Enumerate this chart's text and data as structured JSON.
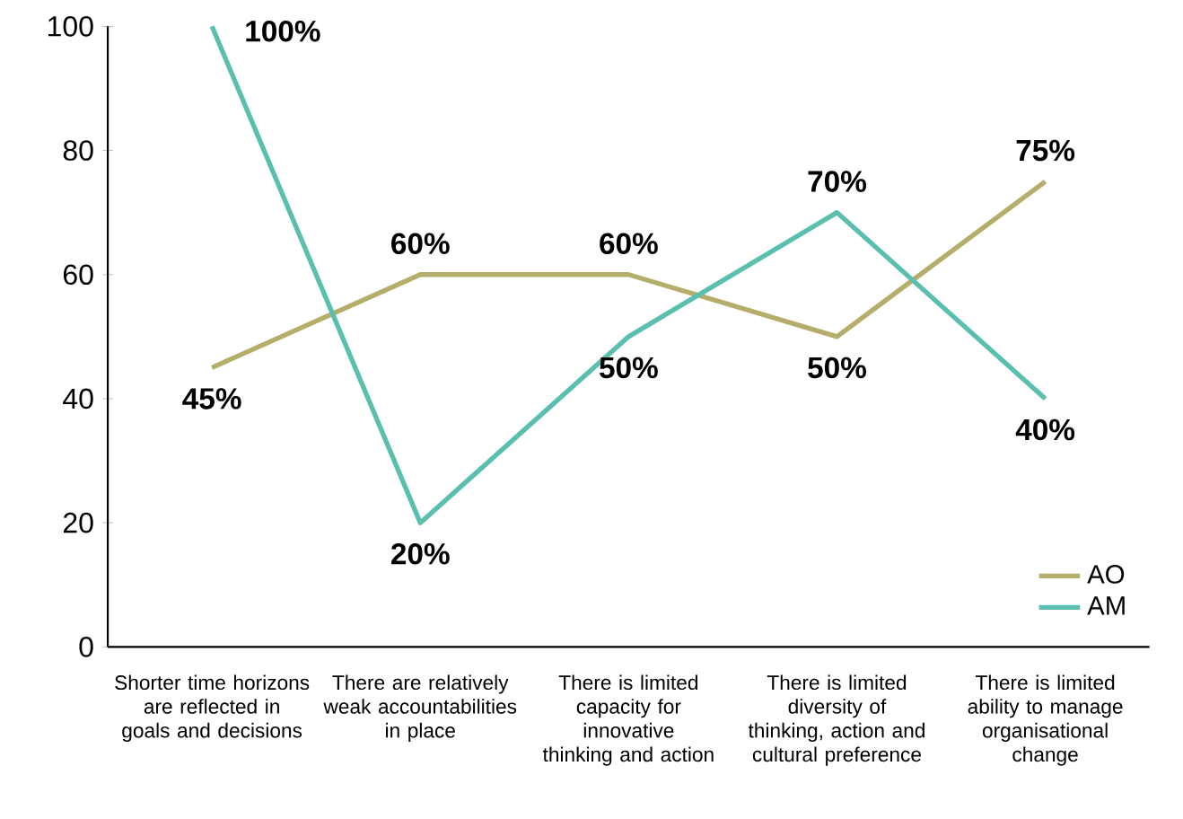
{
  "chart_data": {
    "type": "line",
    "categories": [
      "Shorter time horizons are reflected in goals and decisions",
      "There are relatively weak accountabilities in place",
      "There is limited capacity for innovative thinking and action",
      "There is limited diversity of thinking, action and cultural preference",
      "There is limited ability to manage organisational change"
    ],
    "series": [
      {
        "name": "AO",
        "color": "#b5ad6a",
        "values": [
          45,
          60,
          60,
          50,
          75
        ],
        "value_labels": [
          "45%",
          "60%",
          "60%",
          "50%",
          "75%"
        ]
      },
      {
        "name": "AM",
        "color": "#5bbfb0",
        "values": [
          100,
          20,
          50,
          70,
          40
        ],
        "value_labels": [
          "100%",
          "20%",
          "50%",
          "70%",
          "40%"
        ]
      }
    ],
    "ylim": [
      0,
      100
    ],
    "yticks": [
      0,
      20,
      40,
      60,
      80,
      100
    ],
    "grid": false,
    "legend": "bottom right",
    "marker": "none",
    "line_style": "solid"
  }
}
